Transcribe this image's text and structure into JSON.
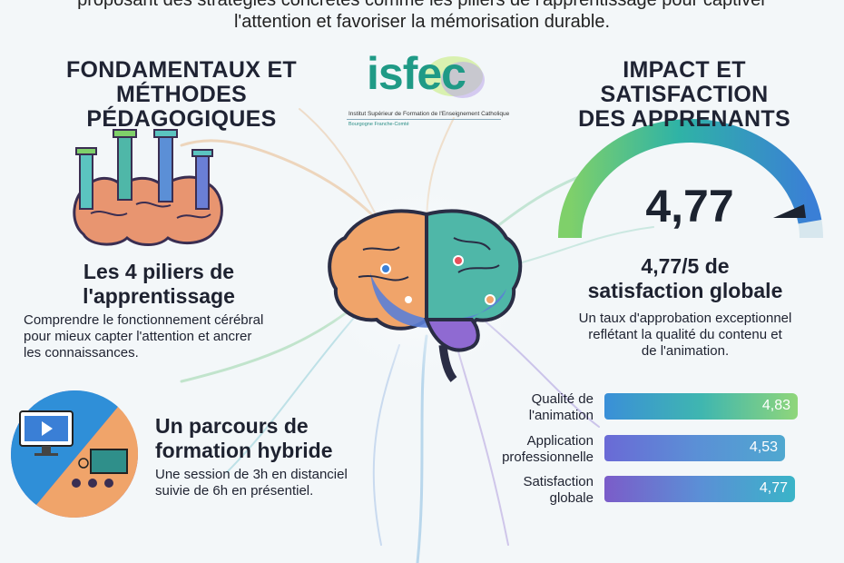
{
  "intro": {
    "line1": "proposant des stratégies concrètes comme les piliers de l'apprentissage pour captiver",
    "line2": "l'attention et favoriser la mémorisation durable."
  },
  "left_header": {
    "line1": "FONDAMENTAUX ET",
    "line2": "MÉTHODES PÉDAGOGIQUES"
  },
  "right_header": {
    "line1": "IMPACT ET SATISFACTION",
    "line2": "DES APPRENANTS"
  },
  "logo": {
    "name": "isfec",
    "subtitle": "Institut Supérieur de Formation de l'Enseignement Catholique",
    "region": "Bourgogne Franche-Comté"
  },
  "pillars": {
    "title1": "Les 4 piliers de",
    "title2": "l'apprentissage",
    "desc1": "Comprendre le fonctionnement cérébral",
    "desc2": "pour mieux capter l'attention et ancrer",
    "desc3": "les connaissances."
  },
  "hybrid": {
    "title1": "Un parcours de",
    "title2": "formation hybride",
    "desc1": "Une session de 3h en distanciel",
    "desc2": "suivie de 6h en présentiel."
  },
  "gauge": {
    "value": "4,77",
    "fraction": 0.954
  },
  "satisfaction": {
    "title1": "4,77/5 de",
    "title2": "satisfaction globale",
    "desc1": "Un taux d'approbation exceptionnel",
    "desc2": "reflétant la qualité du contenu et",
    "desc3": "de l'animation."
  },
  "bars": [
    {
      "label1": "Qualité de",
      "label2": "l'animation",
      "value": "4,83",
      "fraction": 0.966
    },
    {
      "label1": "Application",
      "label2": "professionnelle",
      "value": "4,53",
      "fraction": 0.906
    },
    {
      "label1": "Satisfaction",
      "label2": "globale",
      "value": "4,77",
      "fraction": 0.954
    }
  ],
  "colors": {
    "teal": "#2bb3a0",
    "green": "#7fcf6a",
    "purple": "#7b5cc9",
    "blue": "#3a8fd8"
  }
}
